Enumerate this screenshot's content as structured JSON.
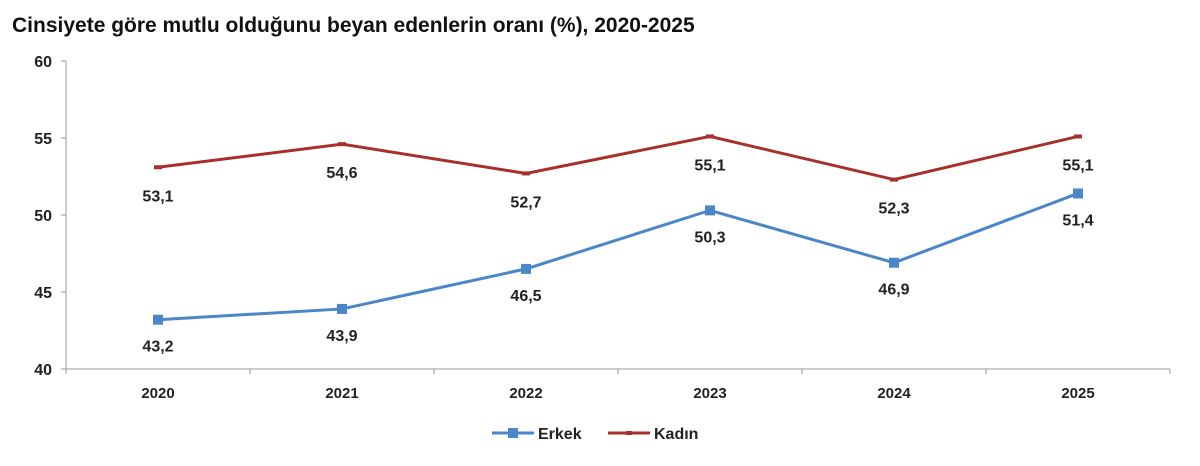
{
  "chart_data": {
    "type": "line",
    "title": "Cinsiyete göre mutlu olduğunu beyan edenlerin oranı (%), 2020-2025",
    "categories": [
      "2020",
      "2021",
      "2022",
      "2023",
      "2024",
      "2025"
    ],
    "ylim": [
      40,
      60
    ],
    "yticks": [
      40,
      45,
      50,
      55,
      60
    ],
    "grid": false,
    "legend": "bottom",
    "series": [
      {
        "name": "Erkek",
        "color": "#4a86c8",
        "marker": "square",
        "values": [
          43.2,
          43.9,
          46.5,
          50.3,
          46.9,
          51.4
        ],
        "labels": [
          "43,2",
          "43,9",
          "46,5",
          "50,3",
          "46,9",
          "51,4"
        ]
      },
      {
        "name": "Kadın",
        "color": "#a8302c",
        "marker": "dash",
        "values": [
          53.1,
          54.6,
          52.7,
          55.1,
          52.3,
          55.1
        ],
        "labels": [
          "53,1",
          "54,6",
          "52,7",
          "55,1",
          "52,3",
          "55,1"
        ]
      }
    ]
  }
}
